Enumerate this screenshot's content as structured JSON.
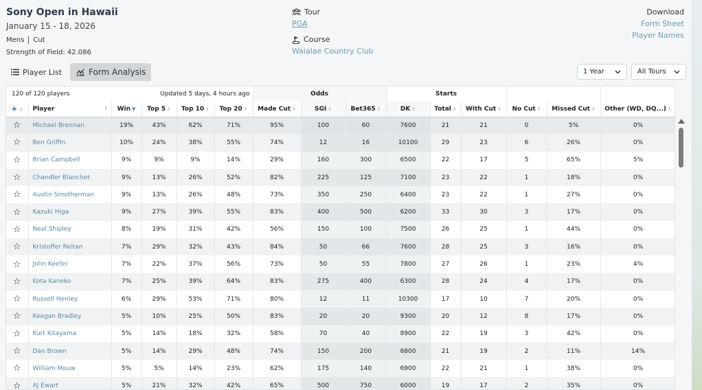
{
  "event": {
    "title": "Sony Open in Hawaii",
    "dates": "January 15 - 18, 2026",
    "gender": "Mens",
    "cut": "Cut",
    "strength": "Strength of Field: 42.086"
  },
  "tour": {
    "label": "Tour",
    "value": "PGA",
    "icon": "users-icon"
  },
  "course": {
    "label": "Course",
    "value": "Waialae Country Club",
    "icon": "golf-icon"
  },
  "download": {
    "title": "Download",
    "form_sheet": "Form Sheet",
    "player_names": "Player Names"
  },
  "tabs": [
    {
      "label": "Player List",
      "icon": "list-icon"
    },
    {
      "label": "Form Analysis",
      "icon": "chart-icon",
      "active": true
    }
  ],
  "filters": {
    "period": "1 Year",
    "tours": "All Tours"
  },
  "table": {
    "count": "120 of 120 players",
    "updated": "Updated 5 days, 4 hours ago",
    "groups": {
      "odds": "Odds",
      "starts": "Starts"
    },
    "columns": {
      "player": "Player",
      "win": "Win",
      "top5": "Top 5",
      "top10": "Top 10",
      "top20": "Top 20",
      "made_cut": "Made Cut",
      "sgi": "SGI",
      "bet365": "Bet365",
      "dk": "DK",
      "total": "Total",
      "with_cut": "With Cut",
      "no_cut": "No Cut",
      "missed_cut": "Missed Cut",
      "other": "Other (WD, DQ...)"
    },
    "rows": [
      [
        "Michael Brennan",
        "19%",
        "43%",
        "62%",
        "71%",
        "95%",
        "100",
        "60",
        "7600",
        "21",
        "21",
        "0",
        "5%",
        "0%"
      ],
      [
        "Ben Griffin",
        "10%",
        "24%",
        "38%",
        "55%",
        "74%",
        "12",
        "16",
        "10100",
        "29",
        "23",
        "6",
        "26%",
        "0%"
      ],
      [
        "Brian Campbell",
        "9%",
        "9%",
        "9%",
        "14%",
        "29%",
        "160",
        "300",
        "6500",
        "22",
        "17",
        "5",
        "65%",
        "5%"
      ],
      [
        "Chandler Blanchet",
        "9%",
        "13%",
        "26%",
        "52%",
        "82%",
        "225",
        "125",
        "7100",
        "23",
        "22",
        "1",
        "18%",
        "0%"
      ],
      [
        "Austin Smotherman",
        "9%",
        "13%",
        "26%",
        "48%",
        "73%",
        "350",
        "250",
        "6400",
        "23",
        "22",
        "1",
        "27%",
        "0%"
      ],
      [
        "Kazuki Higa",
        "9%",
        "27%",
        "39%",
        "55%",
        "83%",
        "400",
        "500",
        "6200",
        "33",
        "30",
        "3",
        "17%",
        "0%"
      ],
      [
        "Neal Shipley",
        "8%",
        "19%",
        "31%",
        "42%",
        "56%",
        "150",
        "100",
        "7500",
        "26",
        "25",
        "1",
        "44%",
        "0%"
      ],
      [
        "Kristoffer Reitan",
        "7%",
        "29%",
        "32%",
        "43%",
        "84%",
        "50",
        "66",
        "7600",
        "28",
        "25",
        "3",
        "16%",
        "0%"
      ],
      [
        "John Keefer",
        "7%",
        "22%",
        "37%",
        "56%",
        "73%",
        "50",
        "55",
        "7800",
        "27",
        "26",
        "1",
        "23%",
        "4%"
      ],
      [
        "Kota Kaneko",
        "7%",
        "25%",
        "39%",
        "64%",
        "83%",
        "275",
        "400",
        "6300",
        "28",
        "24",
        "4",
        "17%",
        "0%"
      ],
      [
        "Russell Henley",
        "6%",
        "29%",
        "53%",
        "71%",
        "80%",
        "12",
        "11",
        "10300",
        "17",
        "10",
        "7",
        "20%",
        "0%"
      ],
      [
        "Keegan Bradley",
        "5%",
        "10%",
        "25%",
        "50%",
        "83%",
        "20",
        "20",
        "9300",
        "20",
        "12",
        "8",
        "17%",
        "0%"
      ],
      [
        "Kurt Kitayama",
        "5%",
        "14%",
        "18%",
        "32%",
        "58%",
        "70",
        "40",
        "8900",
        "22",
        "19",
        "3",
        "42%",
        "0%"
      ],
      [
        "Dan Brown",
        "5%",
        "14%",
        "29%",
        "48%",
        "74%",
        "150",
        "200",
        "6800",
        "21",
        "19",
        "2",
        "11%",
        "14%"
      ],
      [
        "William Mouw",
        "5%",
        "5%",
        "14%",
        "23%",
        "62%",
        "175",
        "140",
        "6900",
        "22",
        "21",
        "1",
        "38%",
        "0%"
      ],
      [
        "AJ Ewart",
        "5%",
        "21%",
        "32%",
        "42%",
        "65%",
        "500",
        "750",
        "6000",
        "19",
        "17",
        "2",
        "35%",
        "0%"
      ]
    ]
  }
}
